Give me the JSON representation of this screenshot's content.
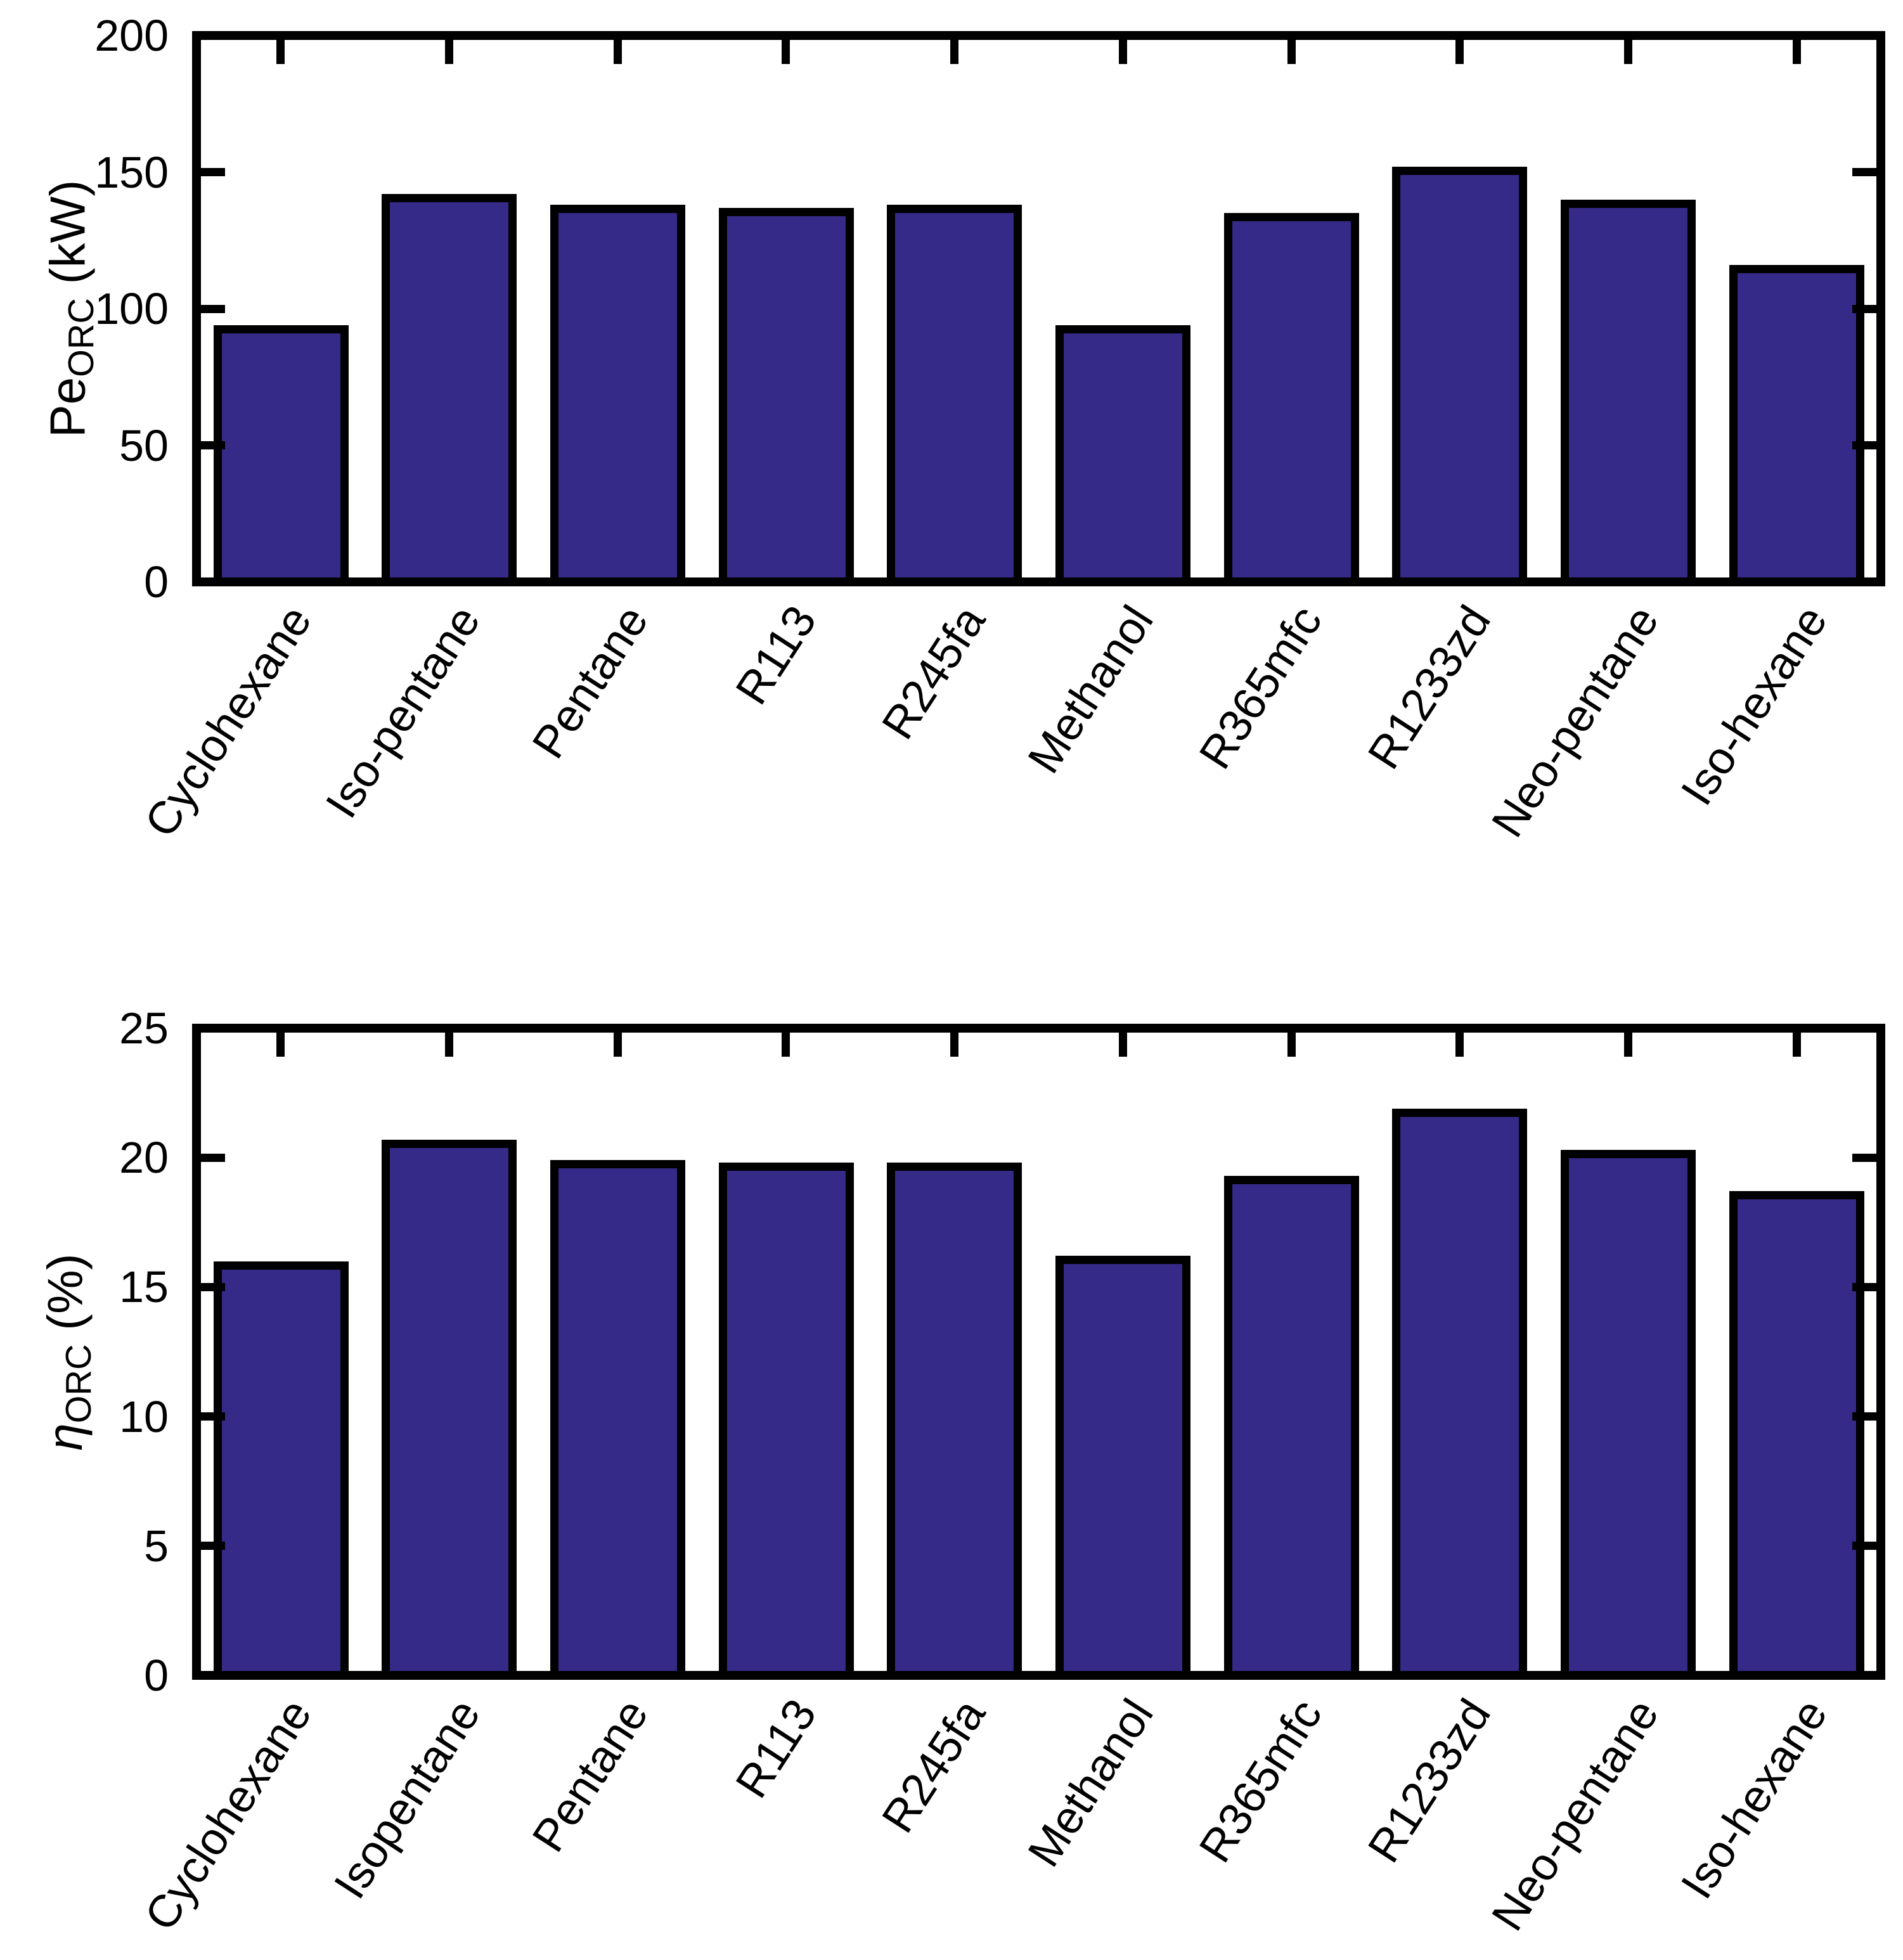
{
  "figure": {
    "background": "#ffffff"
  },
  "style": {
    "bar_fill": "#352A87",
    "bar_edge": "#000000",
    "axis_color": "#000000",
    "text_color": "#000000"
  },
  "chart_data": [
    {
      "type": "bar",
      "title": "",
      "ylabel": "Pe_ORC (kW)",
      "ylabel_main": "Pe",
      "ylabel_sub": "ORC",
      "ylabel_unit": " (kW)",
      "ylabel_italic": false,
      "xlabel": "",
      "categories": [
        "Cyclohexane",
        "Iso-pentane",
        "Pentane",
        "R113",
        "R245fa",
        "Methanol",
        "R365mfc",
        "R1233zd",
        "Neo-pentane",
        "Iso-hexane"
      ],
      "values": [
        94,
        142,
        138,
        137,
        138,
        94,
        135,
        152,
        140,
        116
      ],
      "ylim": [
        0,
        200
      ],
      "yticks": [
        0,
        50,
        100,
        150,
        200
      ],
      "grid": false,
      "legend_position": "none"
    },
    {
      "type": "bar",
      "title": "",
      "ylabel": "η_ORC (%)",
      "ylabel_main": "η",
      "ylabel_sub": "ORC",
      "ylabel_unit": " (%)",
      "ylabel_italic": true,
      "xlabel": "",
      "categories": [
        "Cyclohexane",
        "Isopentane",
        "Pentane",
        "R113",
        "R245fa",
        "Methanol",
        "R365mfc",
        "R1233zd",
        "Neo-pentane",
        "Iso-hexane"
      ],
      "values": [
        16.0,
        20.7,
        19.9,
        19.8,
        19.8,
        16.2,
        19.3,
        21.9,
        20.3,
        18.7
      ],
      "ylim": [
        0,
        25
      ],
      "yticks": [
        0,
        5,
        10,
        15,
        20,
        25
      ],
      "grid": false,
      "legend_position": "none"
    }
  ]
}
